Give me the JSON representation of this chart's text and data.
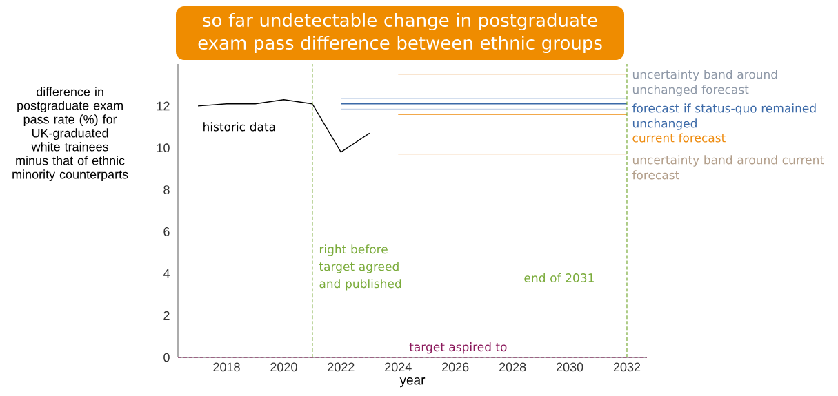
{
  "chart_data": {
    "type": "line",
    "title": "so far undetectable change in postgraduate exam pass difference between ethnic groups",
    "xlabel": "year",
    "ylabel": "difference in postgraduate exam pass rate (%) for UK-graduated white trainees minus that of ethnic minority counterparts",
    "xlim": [
      2016.3,
      2032.7
    ],
    "xticks": [
      2018,
      2020,
      2022,
      2024,
      2026,
      2028,
      2030,
      2032
    ],
    "ylim": [
      0,
      14
    ],
    "yticks": [
      0,
      2,
      4,
      6,
      8,
      10,
      12
    ],
    "grid": false,
    "series": [
      {
        "name": "historic data",
        "color": "#000000",
        "x": [
          2017,
          2018,
          2019,
          2020,
          2021,
          2022,
          2023
        ],
        "values": [
          12.0,
          12.1,
          12.1,
          12.3,
          12.1,
          9.8,
          10.7
        ]
      },
      {
        "name": "uncertainty band around unchanged forecast",
        "color": "#c5d3e8",
        "x": [
          2022,
          2032
        ],
        "values": [
          12.35,
          12.35
        ]
      },
      {
        "color": "#c5d3e8",
        "x": [
          2022,
          2032
        ],
        "values": [
          11.85,
          11.85
        ]
      },
      {
        "name": "forecast if status-quo remained unchanged",
        "color": "#3c6aa8",
        "x": [
          2022,
          2032
        ],
        "values": [
          12.1,
          12.1
        ]
      },
      {
        "color": "#f7dcc0",
        "x": [
          2024,
          2032
        ],
        "values": [
          13.5,
          13.5
        ]
      },
      {
        "name": "current forecast",
        "color": "#ee8c10",
        "x": [
          2024,
          2032
        ],
        "values": [
          11.6,
          11.6
        ]
      },
      {
        "name": "uncertainty band around current forecast",
        "color": "#f7dcc0",
        "x": [
          2024,
          2032
        ],
        "values": [
          9.7,
          9.7
        ]
      }
    ],
    "ref_lines": [
      {
        "axis": "x",
        "value": 2021,
        "label": "right before target agreed and published",
        "color": "#7aab3a",
        "line_style": "dashed"
      },
      {
        "axis": "x",
        "value": 2032,
        "label": "end of 2031",
        "color": "#7aab3a",
        "line_style": "dashed"
      },
      {
        "axis": "y",
        "value": 0,
        "label": "target aspired to",
        "color": "#8b1a5c",
        "line_style": "dashed"
      }
    ]
  }
}
